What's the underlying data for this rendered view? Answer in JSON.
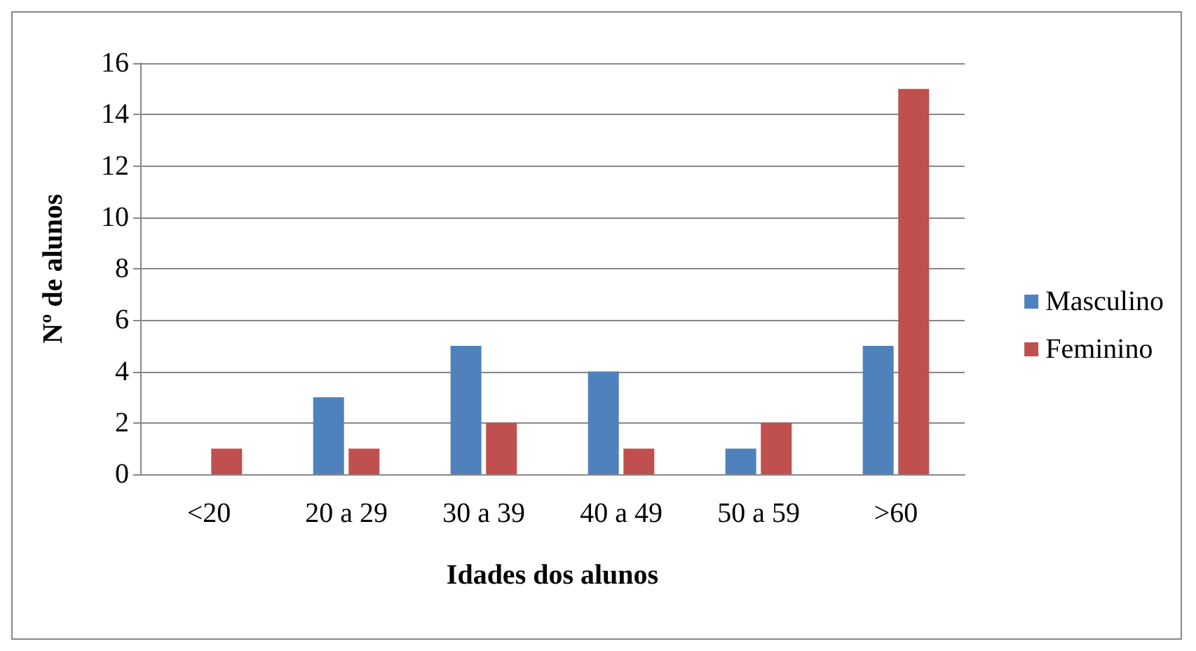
{
  "chart_data": {
    "type": "bar",
    "xlabel": "Idades dos alunos",
    "ylabel": "Nº de alunos",
    "categories": [
      "<20",
      "20 a 29",
      "30 a 39",
      "40 a 49",
      "50 a 59",
      ">60"
    ],
    "series": [
      {
        "name": "Masculino",
        "color": "#4f81bd",
        "values": [
          0,
          3,
          5,
          4,
          1,
          5
        ]
      },
      {
        "name": "Feminino",
        "color": "#c0504d",
        "values": [
          1,
          1,
          2,
          1,
          2,
          15
        ]
      }
    ],
    "ylim": [
      0,
      16
    ],
    "yticks": [
      0,
      2,
      4,
      6,
      8,
      10,
      12,
      14,
      16
    ],
    "grid": "y",
    "legend": "right"
  }
}
